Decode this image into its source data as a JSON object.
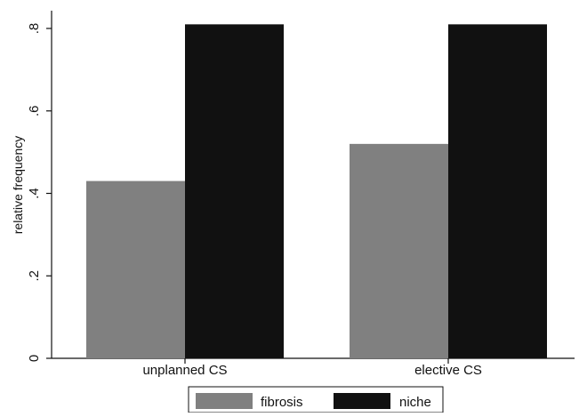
{
  "chart_data": {
    "type": "bar",
    "title": "",
    "xlabel": "",
    "ylabel": "relative frequency",
    "ylim": [
      0,
      0.85
    ],
    "yticks": [
      0,
      0.2,
      0.4,
      0.6,
      0.8
    ],
    "ytick_labels": [
      "0",
      ".2",
      ".4",
      ".6",
      ".8"
    ],
    "categories": [
      "unplanned CS",
      "elective CS"
    ],
    "series": [
      {
        "name": "fibrosis",
        "color": "#808080",
        "values": [
          0.43,
          0.52
        ]
      },
      {
        "name": "niche",
        "color": "#111111",
        "values": [
          0.81,
          0.81
        ]
      }
    ],
    "grid": false,
    "legend_position": "bottom"
  }
}
